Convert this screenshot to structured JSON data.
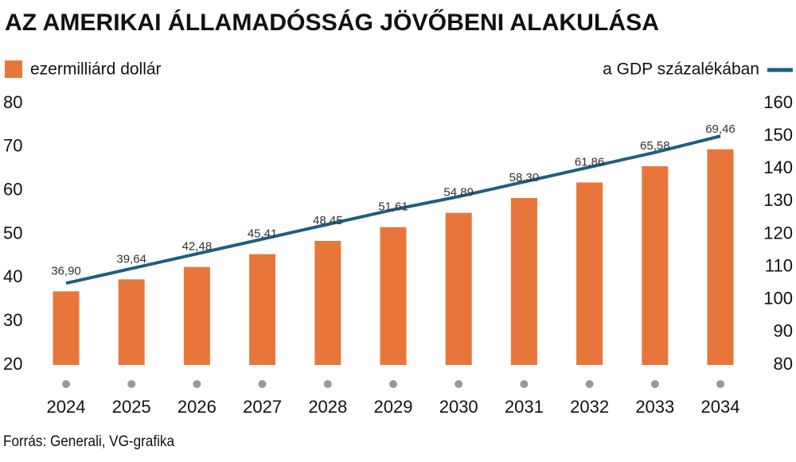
{
  "chart_data": {
    "type": "bar",
    "title": "AZ AMERIKAI ÁLLAMADÓSSÁG JÖVŐBENI ALAKULÁSA",
    "source": "Forrás: Generali, VG-grafika",
    "categories": [
      "2024",
      "2025",
      "2026",
      "2027",
      "2028",
      "2029",
      "2030",
      "2031",
      "2032",
      "2033",
      "2034"
    ],
    "series": [
      {
        "name": "ezermilliárd dollár",
        "type": "bar",
        "color": "#e8763a",
        "values": [
          36.9,
          39.64,
          42.48,
          45.41,
          48.45,
          51.61,
          54.89,
          58.3,
          61.86,
          65.58,
          69.46
        ],
        "value_labels": [
          "36,90",
          "39,64",
          "42,48",
          "45,41",
          "48,45",
          "51,61",
          "54,89",
          "58,30",
          "61,86",
          "65,58",
          "69,46"
        ]
      },
      {
        "name": "a GDP százalékában",
        "type": "line",
        "axis": "y2",
        "color": "#1f5f7f",
        "values": [
          105,
          109.5,
          114,
          118.5,
          123,
          127.5,
          131.5,
          136,
          140.5,
          145,
          150
        ]
      }
    ],
    "ylim": [
      20,
      80
    ],
    "yticks": [
      20,
      30,
      40,
      50,
      60,
      70,
      80
    ],
    "y2lim": [
      80,
      160
    ],
    "y2ticks": [
      80,
      90,
      100,
      110,
      120,
      130,
      140,
      150,
      160
    ]
  }
}
